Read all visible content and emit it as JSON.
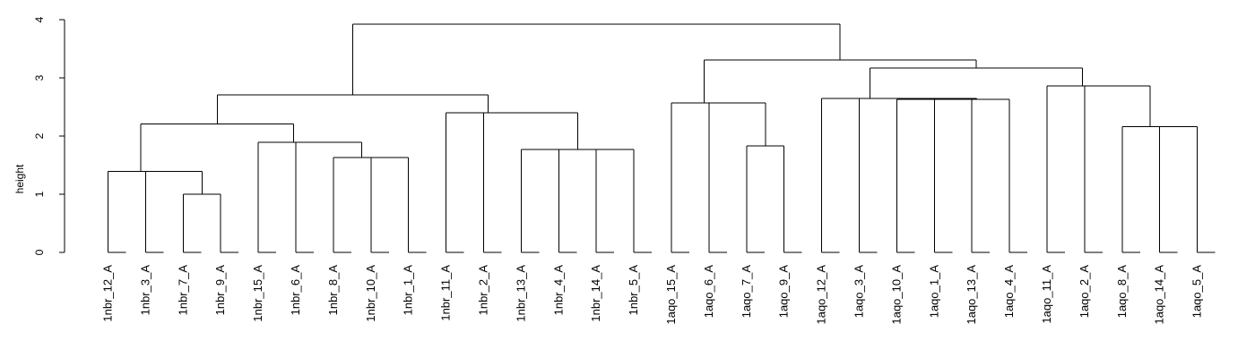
{
  "chart_data": {
    "type": "dendrogram",
    "title": "",
    "xlabel": "",
    "ylabel": "height",
    "ylim": [
      0,
      4
    ],
    "yticks": [
      0,
      1,
      2,
      3,
      4
    ],
    "leaves": [
      "1nbr_12_A",
      "1nbr_3_A",
      "1nbr_7_A",
      "1nbr_9_A",
      "1nbr_15_A",
      "1nbr_6_A",
      "1nbr_8_A",
      "1nbr_10_A",
      "1nbr_1_A",
      "1nbr_11_A",
      "1nbr_2_A",
      "1nbr_13_A",
      "1nbr_4_A",
      "1nbr_14_A",
      "1nbr_5_A",
      "1aqo_15_A",
      "1aqo_6_A",
      "1aqo_7_A",
      "1aqo_9_A",
      "1aqo_12_A",
      "1aqo_3_A",
      "1aqo_10_A",
      "1aqo_1_A",
      "1aqo_13_A",
      "1aqo_4_A",
      "1aqo_11_A",
      "1aqo_2_A",
      "1aqo_8_A",
      "1aqo_14_A",
      "1aqo_5_A"
    ],
    "merges": [
      {
        "id": "m1",
        "children": [
          "1nbr_7_A",
          "1nbr_9_A"
        ],
        "height": 1.0
      },
      {
        "id": "m2",
        "children": [
          "1nbr_3_A",
          "m1"
        ],
        "height": 1.39
      },
      {
        "id": "m3",
        "children": [
          "1nbr_12_A",
          "m2"
        ],
        "height": 1.39
      },
      {
        "id": "m4",
        "children": [
          "1nbr_10_A",
          "1nbr_1_A"
        ],
        "height": 1.63
      },
      {
        "id": "m5",
        "children": [
          "1nbr_8_A",
          "m4"
        ],
        "height": 1.63
      },
      {
        "id": "m6",
        "children": [
          "1nbr_6_A",
          "m5"
        ],
        "height": 1.89
      },
      {
        "id": "m7",
        "children": [
          "1nbr_15_A",
          "m6"
        ],
        "height": 1.89
      },
      {
        "id": "m8",
        "children": [
          "m3",
          "m7"
        ],
        "height": 2.21
      },
      {
        "id": "m9",
        "children": [
          "1nbr_14_A",
          "1nbr_5_A"
        ],
        "height": 1.77
      },
      {
        "id": "m10",
        "children": [
          "1nbr_13_A",
          "1nbr_4_A"
        ],
        "height": 1.77
      },
      {
        "id": "m11",
        "children": [
          "m10",
          "m9"
        ],
        "height": 1.77
      },
      {
        "id": "m12",
        "children": [
          "1nbr_2_A",
          "m11"
        ],
        "height": 2.4
      },
      {
        "id": "m13",
        "children": [
          "1nbr_11_A",
          "m12"
        ],
        "height": 2.4
      },
      {
        "id": "m14",
        "children": [
          "m8",
          "m13"
        ],
        "height": 2.71
      },
      {
        "id": "m15",
        "children": [
          "1aqo_7_A",
          "1aqo_9_A"
        ],
        "height": 1.83
      },
      {
        "id": "m16",
        "children": [
          "1aqo_6_A",
          "m15"
        ],
        "height": 2.57
      },
      {
        "id": "m17",
        "children": [
          "1aqo_15_A",
          "m16"
        ],
        "height": 2.57
      },
      {
        "id": "m18",
        "children": [
          "1aqo_10_A",
          "1aqo_1_A"
        ],
        "height": 2.63
      },
      {
        "id": "m19",
        "children": [
          "m18",
          "1aqo_13_A"
        ],
        "height": 2.63
      },
      {
        "id": "m20",
        "children": [
          "m19",
          "1aqo_4_A"
        ],
        "height": 2.63
      },
      {
        "id": "m21",
        "children": [
          "1aqo_3_A",
          "m20"
        ],
        "height": 2.65
      },
      {
        "id": "m22",
        "children": [
          "1aqo_12_A",
          "m21"
        ],
        "height": 2.65
      },
      {
        "id": "m23",
        "children": [
          "1aqo_14_A",
          "1aqo_5_A"
        ],
        "height": 2.16
      },
      {
        "id": "m24",
        "children": [
          "1aqo_8_A",
          "m23"
        ],
        "height": 2.16
      },
      {
        "id": "m25",
        "children": [
          "1aqo_2_A",
          "m24"
        ],
        "height": 2.86
      },
      {
        "id": "m26",
        "children": [
          "1aqo_11_A",
          "m25"
        ],
        "height": 2.86
      },
      {
        "id": "m27",
        "children": [
          "m22",
          "m26"
        ],
        "height": 3.17
      },
      {
        "id": "m28",
        "children": [
          "m17",
          "m27"
        ],
        "height": 3.31
      },
      {
        "id": "m29",
        "children": [
          "m14",
          "m28"
        ],
        "height": 3.92
      }
    ],
    "grid": false,
    "legend": "none"
  }
}
